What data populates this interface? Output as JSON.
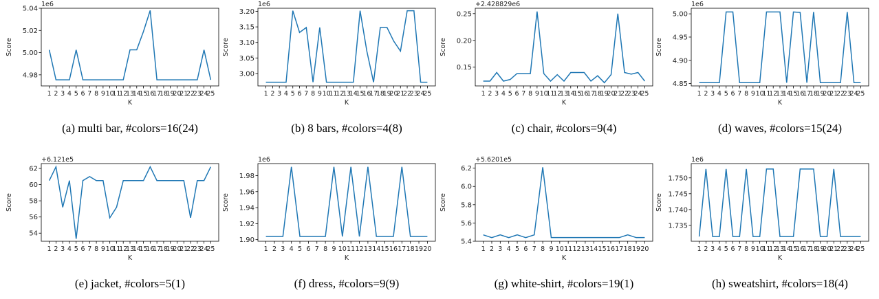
{
  "chart_data": [
    {
      "type": "line",
      "caption": "(a) multi bar, #colors=16(24)",
      "xlabel": "K",
      "ylabel": "Score",
      "offset": "1e6",
      "x": [
        1,
        2,
        3,
        4,
        5,
        6,
        7,
        8,
        9,
        10,
        11,
        12,
        13,
        14,
        15,
        16,
        17,
        18,
        19,
        20,
        21,
        22,
        23,
        24,
        25
      ],
      "values": [
        5.0025,
        4.9755,
        4.9755,
        4.9755,
        5.0025,
        4.9755,
        4.9755,
        4.9755,
        4.9755,
        4.9755,
        4.9755,
        4.9755,
        5.0025,
        5.0025,
        5.019,
        5.038,
        4.9755,
        4.9755,
        4.9755,
        4.9755,
        4.9755,
        4.9755,
        4.9755,
        5.0025,
        4.9755
      ],
      "ylim": [
        4.97,
        5.04
      ],
      "yticks": [
        4.98,
        5.0,
        5.02,
        5.04
      ],
      "ytick_labels": [
        "4.98",
        "5.00",
        "5.02",
        "5.04"
      ],
      "color": "#1f77b4"
    },
    {
      "type": "line",
      "caption": "(b) 8 bars, #colors=4(8)",
      "xlabel": "K",
      "ylabel": "Score",
      "offset": "1e6",
      "x": [
        1,
        2,
        3,
        4,
        5,
        6,
        7,
        8,
        9,
        10,
        11,
        12,
        13,
        14,
        15,
        16,
        17,
        18,
        19,
        20,
        21,
        22,
        23,
        24,
        25
      ],
      "values": [
        2.972,
        2.972,
        2.972,
        2.972,
        3.202,
        3.132,
        3.148,
        2.972,
        3.148,
        2.972,
        2.972,
        2.972,
        2.972,
        2.972,
        3.202,
        3.072,
        2.972,
        3.148,
        3.148,
        3.104,
        3.072,
        3.202,
        3.202,
        2.972,
        2.972
      ],
      "ylim": [
        2.96,
        3.21
      ],
      "yticks": [
        3.0,
        3.05,
        3.1,
        3.15,
        3.2
      ],
      "ytick_labels": [
        "3.00",
        "3.05",
        "3.10",
        "3.15",
        "3.20"
      ],
      "color": "#1f77b4"
    },
    {
      "type": "line",
      "caption": "(c) chair, #colors=9(4)",
      "xlabel": "K",
      "ylabel": "Score",
      "offset": "+2.428829e6",
      "x": [
        1,
        2,
        3,
        4,
        5,
        6,
        7,
        8,
        9,
        10,
        11,
        12,
        13,
        14,
        15,
        16,
        17,
        18,
        19,
        20,
        21,
        22,
        23,
        24,
        25
      ],
      "values": [
        0.124,
        0.124,
        0.14,
        0.124,
        0.127,
        0.138,
        0.138,
        0.138,
        0.254,
        0.138,
        0.124,
        0.136,
        0.124,
        0.14,
        0.14,
        0.14,
        0.124,
        0.134,
        0.121,
        0.136,
        0.25,
        0.14,
        0.137,
        0.14,
        0.124
      ],
      "ylim": [
        0.115,
        0.26
      ],
      "yticks": [
        0.15,
        0.2,
        0.25
      ],
      "ytick_labels": [
        "0.15",
        "0.20",
        "0.25"
      ],
      "color": "#1f77b4"
    },
    {
      "type": "line",
      "caption": "(d) waves, #colors=15(24)",
      "xlabel": "K",
      "ylabel": "Score",
      "offset": "1e6",
      "x": [
        1,
        2,
        3,
        4,
        5,
        6,
        7,
        8,
        9,
        10,
        11,
        12,
        13,
        14,
        15,
        16,
        17,
        18,
        19,
        20,
        21,
        22,
        23,
        24,
        25
      ],
      "values": [
        4.852,
        4.852,
        4.852,
        4.852,
        5.004,
        5.004,
        4.852,
        4.852,
        4.852,
        4.852,
        5.004,
        5.004,
        5.004,
        4.852,
        5.004,
        5.003,
        4.852,
        5.004,
        4.852,
        4.852,
        4.852,
        4.852,
        5.004,
        4.852,
        4.852
      ],
      "ylim": [
        4.845,
        5.012
      ],
      "yticks": [
        4.85,
        4.9,
        4.95,
        5.0
      ],
      "ytick_labels": [
        "4.85",
        "4.90",
        "4.95",
        "5.00"
      ],
      "color": "#1f77b4"
    },
    {
      "type": "line",
      "caption": "(e) jacket, #colors=5(1)",
      "xlabel": "K",
      "ylabel": "Score",
      "offset": "+6.121e5",
      "x": [
        1,
        2,
        3,
        4,
        5,
        6,
        7,
        8,
        9,
        10,
        11,
        12,
        13,
        14,
        15,
        16,
        17,
        18,
        19,
        20,
        21,
        22,
        23,
        24,
        25
      ],
      "values": [
        60.5,
        62.2,
        57.2,
        60.5,
        53.3,
        60.5,
        61.0,
        60.5,
        60.5,
        55.9,
        57.2,
        60.5,
        60.5,
        60.5,
        60.5,
        62.2,
        60.5,
        60.5,
        60.5,
        60.5,
        60.5,
        55.9,
        60.5,
        60.5,
        62.2
      ],
      "ylim": [
        53,
        62.6
      ],
      "yticks": [
        54,
        56,
        58,
        60,
        62
      ],
      "ytick_labels": [
        "54",
        "56",
        "58",
        "60",
        "62"
      ],
      "color": "#1f77b4"
    },
    {
      "type": "line",
      "caption": "(f) dress, #colors=9(9)",
      "xlabel": "K",
      "ylabel": "Score",
      "offset": "1e6",
      "x": [
        1,
        2,
        3,
        4,
        5,
        6,
        7,
        8,
        9,
        10,
        11,
        12,
        13,
        14,
        15,
        16,
        17,
        18,
        19,
        20
      ],
      "values": [
        1.904,
        1.904,
        1.904,
        1.991,
        1.904,
        1.904,
        1.904,
        1.904,
        1.991,
        1.904,
        1.991,
        1.904,
        1.991,
        1.904,
        1.904,
        1.904,
        1.991,
        1.904,
        1.904,
        1.904
      ],
      "ylim": [
        1.898,
        1.995
      ],
      "yticks": [
        1.9,
        1.92,
        1.94,
        1.96,
        1.98
      ],
      "ytick_labels": [
        "1.90",
        "1.92",
        "1.94",
        "1.96",
        "1.98"
      ],
      "color": "#1f77b4"
    },
    {
      "type": "line",
      "caption": "(g) white-shirt, #colors=19(1)",
      "xlabel": "K",
      "ylabel": "Score",
      "offset": "+5.6201e5",
      "x": [
        1,
        2,
        3,
        4,
        5,
        6,
        7,
        8,
        9,
        10,
        11,
        12,
        13,
        14,
        15,
        16,
        17,
        18,
        19,
        20
      ],
      "values": [
        5.47,
        5.44,
        5.47,
        5.44,
        5.47,
        5.44,
        5.47,
        6.21,
        5.44,
        5.44,
        5.44,
        5.44,
        5.44,
        5.44,
        5.44,
        5.44,
        5.44,
        5.47,
        5.44,
        5.44
      ],
      "ylim": [
        5.4,
        6.25
      ],
      "yticks": [
        5.4,
        5.6,
        5.8,
        6.0,
        6.2
      ],
      "ytick_labels": [
        "5.4",
        "5.6",
        "5.8",
        "6.0",
        "6.2"
      ],
      "color": "#1f77b4"
    },
    {
      "type": "line",
      "caption": "(h) sweatshirt, #colors=18(4)",
      "xlabel": "K",
      "ylabel": "Score",
      "offset": "1e6",
      "x": [
        1,
        2,
        3,
        4,
        5,
        6,
        7,
        8,
        9,
        10,
        11,
        12,
        13,
        14,
        15,
        16,
        17,
        18,
        19,
        20,
        21,
        22,
        23,
        24,
        25
      ],
      "values": [
        1.7315,
        1.7528,
        1.7315,
        1.7315,
        1.7528,
        1.7315,
        1.7315,
        1.7528,
        1.7315,
        1.7315,
        1.7528,
        1.7528,
        1.7315,
        1.7315,
        1.7315,
        1.7528,
        1.7528,
        1.7528,
        1.7315,
        1.7315,
        1.7528,
        1.7315,
        1.7315,
        1.7315,
        1.7315
      ],
      "ylim": [
        1.73,
        1.7545
      ],
      "yticks": [
        1.735,
        1.74,
        1.745,
        1.75
      ],
      "ytick_labels": [
        "1.735",
        "1.740",
        "1.745",
        "1.750"
      ],
      "color": "#1f77b4"
    }
  ]
}
